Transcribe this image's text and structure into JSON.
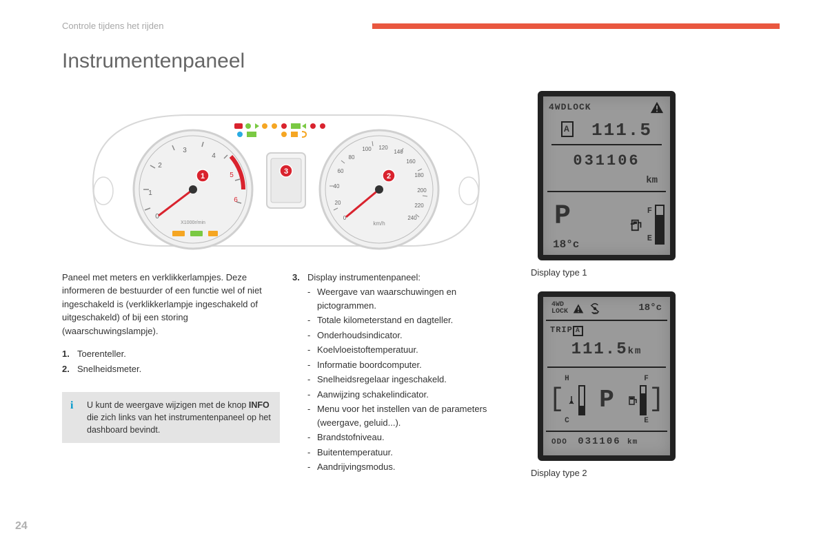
{
  "header": {
    "section_label": "Controle tijdens het rijden"
  },
  "title": "Instrumentenpaneel",
  "page_number": "24",
  "intro": "Paneel met meters en verklikkerlampjes. Deze informeren de bestuurder of een functie wel of niet ingeschakeld is (verklikkerlampje ingeschakeld of uitgeschakeld) of bij een storing (waarschuwingslampje).",
  "list_left": [
    {
      "num": "1.",
      "text": "Toerenteller."
    },
    {
      "num": "2.",
      "text": "Snelheidsmeter."
    }
  ],
  "item3_num": "3.",
  "item3_label": "Display instrumentenpaneel:",
  "sublist": [
    "Weergave van waarschuwingen en pictogrammen.",
    "Totale kilometerstand en dagteller.",
    "Onderhoudsindicator.",
    "Koelvloeistoftemperatuur.",
    "Informatie boordcomputer.",
    "Snelheidsregelaar ingeschakeld.",
    "Aanwijzing schakelindicator.",
    "Menu voor het instellen van de parameters (weergave, geluid...).",
    "Brandstofniveau.",
    "Buitentemperatuur.",
    "Aandrijvingsmodus."
  ],
  "info_box": {
    "text_before": "U kunt de weergave wijzigen met de knop ",
    "bold": "INFO",
    "text_after": " die zich links van het instrumentenpaneel op het dashboard bevindt."
  },
  "display1": {
    "caption": "Display type 1",
    "lock_label": "4WDLOCK",
    "trip_letter": "A",
    "trip_value": "111.5",
    "odo": "031106",
    "km": "km",
    "gear": "P",
    "temp": "18°c",
    "fuel_full": "F",
    "fuel_empty": "E",
    "fuel_level_pct": 75
  },
  "display2": {
    "caption": "Display type 2",
    "lock_label": "4WD\nLOCK",
    "temp": "18°c",
    "trip_label": "TRIP",
    "trip_letter": "A",
    "trip_value": "111.5",
    "trip_unit": "km",
    "coolant_h": "H",
    "coolant_c": "C",
    "gear": "P",
    "fuel_f": "F",
    "fuel_e": "E",
    "odo_label": "ODO",
    "odo_value": "031106",
    "odo_unit": "km",
    "coolant_pct": 30,
    "fuel_pct": 75
  },
  "cluster": {
    "outline_color": "#d8d8d8",
    "gauge_face": "#f1f1f1",
    "needle_color": "#d9232e",
    "tacho": {
      "ticks": [
        "0",
        "1",
        "2",
        "3",
        "4",
        "5",
        "6"
      ],
      "unit": "X1000r/min",
      "redline_start": 5
    },
    "speedo": {
      "ticks": [
        "0",
        "20",
        "40",
        "60",
        "80",
        "100",
        "120",
        "140",
        "160",
        "180",
        "200",
        "220",
        "240"
      ],
      "unit": "km/h"
    },
    "callouts": {
      "1": "1",
      "2": "2",
      "3": "3"
    },
    "warning_colors": {
      "red": "#d9232e",
      "amber": "#f5a623",
      "green": "#7ac943",
      "blue": "#29abe2"
    }
  }
}
